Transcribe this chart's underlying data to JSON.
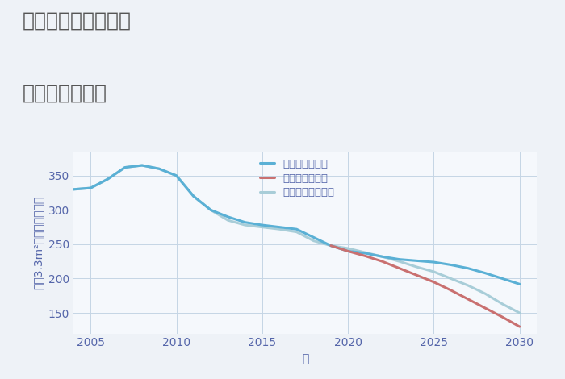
{
  "title_line1": "東京都墨田区向島の",
  "title_line2": "土地の価格推移",
  "xlabel": "年",
  "ylabel": "坪（3.3m²）単価（万円）",
  "background_color": "#eef2f7",
  "plot_bg_color": "#f5f8fc",
  "grid_color": "#c5d5e5",
  "xlim": [
    2004,
    2031
  ],
  "ylim": [
    120,
    385
  ],
  "xticks": [
    2005,
    2010,
    2015,
    2020,
    2025,
    2030
  ],
  "yticks": [
    150,
    200,
    250,
    300,
    350
  ],
  "good_scenario": {
    "label": "グッドシナリオ",
    "color": "#5ab0d5",
    "linewidth": 2.2,
    "x": [
      2004,
      2005,
      2006,
      2007,
      2008,
      2009,
      2010,
      2011,
      2012,
      2013,
      2014,
      2015,
      2016,
      2017,
      2018,
      2019,
      2020,
      2021,
      2022,
      2023,
      2024,
      2025,
      2026,
      2027,
      2028,
      2029,
      2030
    ],
    "y": [
      330,
      332,
      345,
      362,
      365,
      360,
      350,
      320,
      300,
      290,
      282,
      278,
      275,
      272,
      260,
      248,
      240,
      237,
      232,
      228,
      226,
      224,
      220,
      215,
      208,
      200,
      192
    ]
  },
  "bad_scenario": {
    "label": "バッドシナリオ",
    "color": "#c97070",
    "linewidth": 2.2,
    "x": [
      2019,
      2020,
      2021,
      2022,
      2023,
      2024,
      2025,
      2026,
      2027,
      2028,
      2029,
      2030
    ],
    "y": [
      248,
      240,
      233,
      225,
      215,
      205,
      195,
      183,
      170,
      157,
      144,
      130
    ]
  },
  "normal_scenario": {
    "label": "ノーマルシナリオ",
    "color": "#a8cdd8",
    "linewidth": 2.2,
    "x": [
      2004,
      2005,
      2006,
      2007,
      2008,
      2009,
      2010,
      2011,
      2012,
      2013,
      2014,
      2015,
      2016,
      2017,
      2018,
      2019,
      2020,
      2021,
      2022,
      2023,
      2024,
      2025,
      2026,
      2027,
      2028,
      2029,
      2030
    ],
    "y": [
      330,
      332,
      345,
      362,
      365,
      360,
      350,
      320,
      300,
      285,
      278,
      275,
      272,
      268,
      255,
      248,
      244,
      238,
      232,
      225,
      217,
      210,
      200,
      190,
      178,
      163,
      150
    ]
  },
  "title_color": "#555555",
  "axis_color": "#5566aa",
  "tick_color": "#5566aa",
  "title_fontsize": 18,
  "axis_fontsize": 10,
  "tick_fontsize": 10
}
